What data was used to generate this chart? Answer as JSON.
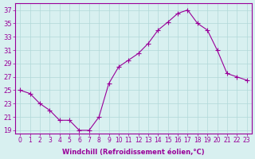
{
  "x": [
    0,
    1,
    2,
    3,
    4,
    5,
    6,
    7,
    8,
    9,
    10,
    11,
    12,
    13,
    14,
    15,
    16,
    17,
    18,
    19,
    20,
    21,
    22,
    23
  ],
  "y": [
    25,
    24.5,
    23,
    22,
    20.5,
    20.5,
    19,
    19,
    21,
    26,
    28.5,
    29.5,
    30.5,
    32,
    34,
    35.2,
    36.5,
    37,
    35,
    34,
    31,
    27.5,
    27,
    26.5
  ],
  "line_color": "#990099",
  "marker": "+",
  "marker_size": 4,
  "bg_color": "#d8f0f0",
  "grid_color": "#b0d8d8",
  "xlabel": "Windchill (Refroidissement éolien,°C)",
  "ylabel_ticks": [
    19,
    21,
    23,
    25,
    27,
    29,
    31,
    33,
    35,
    37
  ],
  "xlim": [
    -0.5,
    23.5
  ],
  "ylim": [
    18.5,
    38
  ],
  "xtick_labels": [
    "0",
    "1",
    "2",
    "3",
    "4",
    "5",
    "6",
    "7",
    "8",
    "9",
    "10",
    "11",
    "12",
    "13",
    "14",
    "15",
    "16",
    "17",
    "18",
    "19",
    "20",
    "21",
    "22",
    "23"
  ],
  "axis_color": "#990099",
  "tick_color": "#990099"
}
